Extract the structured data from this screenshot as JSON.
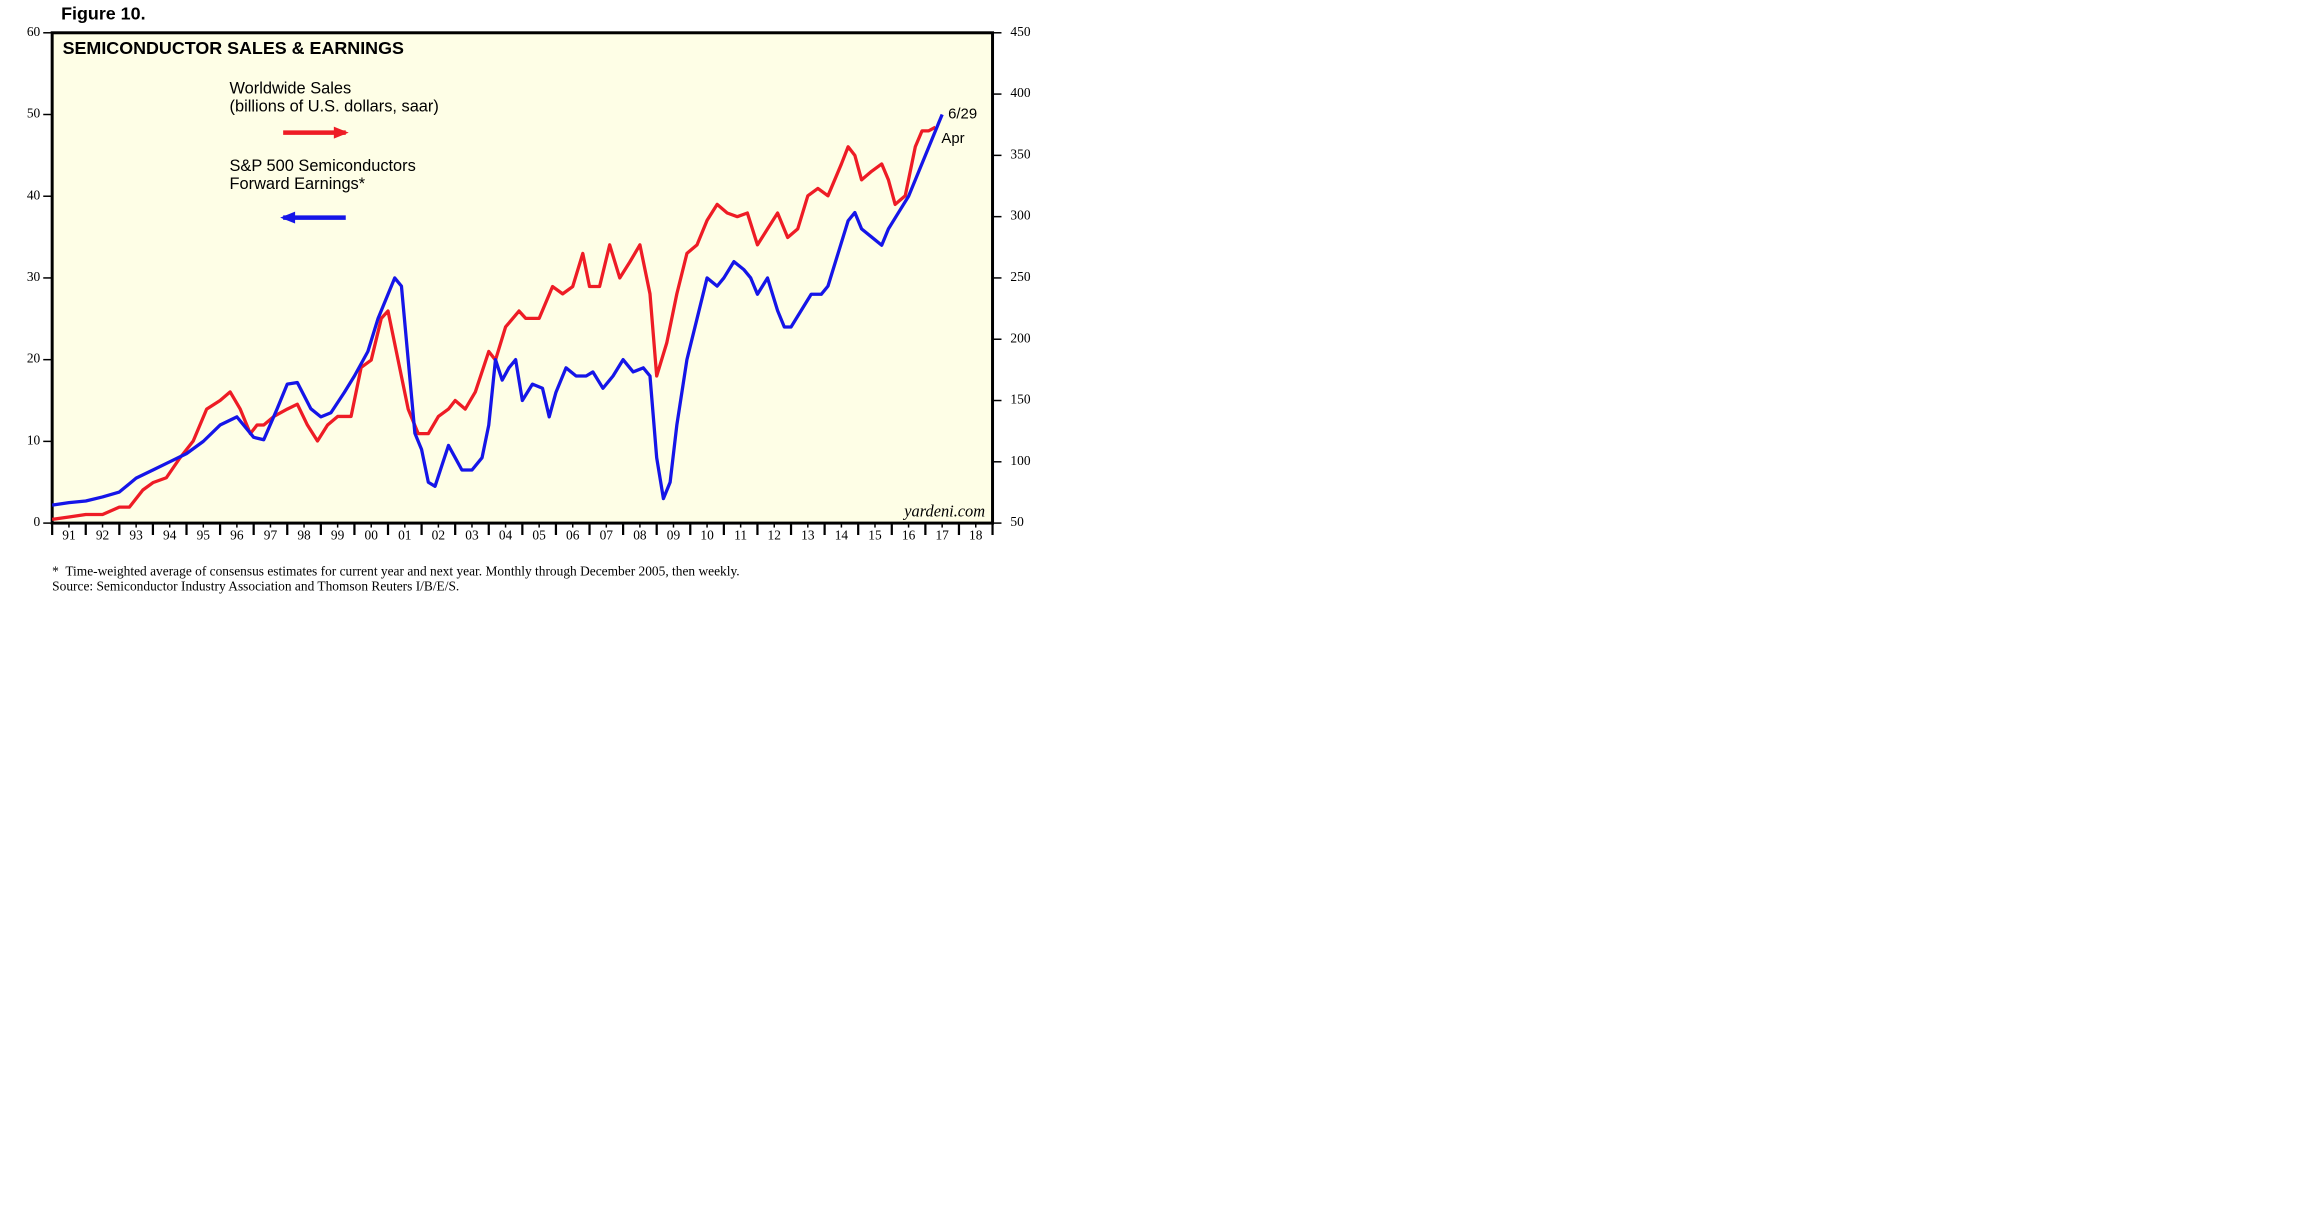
{
  "chart_data": {
    "type": "line",
    "figure_label": "Figure 10.",
    "title": "SEMICONDUCTOR SALES & EARNINGS",
    "watermark": "yardeni.com",
    "footnotes": [
      "*  Time-weighted average of consensus estimates for current year and next year. Monthly through December 2005, then weekly.",
      "Source:  Semiconductor Industry Association and Thomson Reuters I/B/E/S."
    ],
    "xlim": [
      1991,
      2019
    ],
    "xticks": [
      {
        "value": 1991.5,
        "label": "91"
      },
      {
        "value": 1992.5,
        "label": "92"
      },
      {
        "value": 1993.5,
        "label": "93"
      },
      {
        "value": 1994.5,
        "label": "94"
      },
      {
        "value": 1995.5,
        "label": "95"
      },
      {
        "value": 1996.5,
        "label": "96"
      },
      {
        "value": 1997.5,
        "label": "97"
      },
      {
        "value": 1998.5,
        "label": "98"
      },
      {
        "value": 1999.5,
        "label": "99"
      },
      {
        "value": 2000.5,
        "label": "00"
      },
      {
        "value": 2001.5,
        "label": "01"
      },
      {
        "value": 2002.5,
        "label": "02"
      },
      {
        "value": 2003.5,
        "label": "03"
      },
      {
        "value": 2004.5,
        "label": "04"
      },
      {
        "value": 2005.5,
        "label": "05"
      },
      {
        "value": 2006.5,
        "label": "06"
      },
      {
        "value": 2007.5,
        "label": "07"
      },
      {
        "value": 2008.5,
        "label": "08"
      },
      {
        "value": 2009.5,
        "label": "09"
      },
      {
        "value": 2010.5,
        "label": "10"
      },
      {
        "value": 2011.5,
        "label": "11"
      },
      {
        "value": 2012.5,
        "label": "12"
      },
      {
        "value": 2013.5,
        "label": "13"
      },
      {
        "value": 2014.5,
        "label": "14"
      },
      {
        "value": 2015.5,
        "label": "15"
      },
      {
        "value": 2016.5,
        "label": "16"
      },
      {
        "value": 2017.5,
        "label": "17"
      },
      {
        "value": 2018.5,
        "label": "18"
      }
    ],
    "ylim": [
      0,
      60
    ],
    "yticks": [
      0,
      10,
      20,
      30,
      40,
      50,
      60
    ],
    "y2lim": [
      50,
      450
    ],
    "y2ticks": [
      50,
      100,
      150,
      200,
      250,
      300,
      350,
      400,
      450
    ],
    "series": [
      {
        "name": "Worldwide Sales",
        "legend_note": "(billions of U.S. dollars, saar)",
        "legend_arrow": "right",
        "end_label": "Apr",
        "color": "#ee1c25",
        "axis": "y2",
        "x": [
          1991.0,
          1991.5,
          1992.0,
          1992.5,
          1993.0,
          1993.3,
          1993.7,
          1994.0,
          1994.4,
          1994.8,
          1995.2,
          1995.6,
          1996.0,
          1996.3,
          1996.6,
          1996.9,
          1997.1,
          1997.3,
          1997.6,
          1998.0,
          1998.3,
          1998.6,
          1998.9,
          1999.2,
          1999.5,
          1999.9,
          2000.2,
          2000.5,
          2000.8,
          2001.0,
          2001.3,
          2001.6,
          2001.9,
          2002.2,
          2002.5,
          2002.8,
          2003.0,
          2003.3,
          2003.6,
          2004.0,
          2004.2,
          2004.5,
          2004.9,
          2005.1,
          2005.5,
          2005.9,
          2006.2,
          2006.5,
          2006.8,
          2007.0,
          2007.3,
          2007.6,
          2007.9,
          2008.2,
          2008.5,
          2008.8,
          2009.0,
          2009.3,
          2009.6,
          2009.9,
          2010.2,
          2010.5,
          2010.8,
          2011.1,
          2011.4,
          2011.7,
          2012.0,
          2012.3,
          2012.6,
          2012.9,
          2013.2,
          2013.5,
          2013.8,
          2014.1,
          2014.5,
          2014.7,
          2014.9,
          2015.1,
          2015.4,
          2015.7,
          2015.9,
          2016.1,
          2016.4,
          2016.7,
          2016.9,
          2017.1,
          2017.3
        ],
        "values": [
          53,
          55,
          57,
          57,
          63,
          63,
          77,
          83,
          87,
          103,
          117,
          143,
          150,
          157,
          143,
          123,
          130,
          130,
          137,
          143,
          147,
          130,
          117,
          130,
          137,
          137,
          177,
          183,
          217,
          223,
          183,
          143,
          123,
          123,
          137,
          143,
          150,
          143,
          157,
          190,
          183,
          210,
          223,
          217,
          217,
          243,
          237,
          243,
          270,
          243,
          243,
          277,
          250,
          263,
          277,
          237,
          170,
          197,
          237,
          270,
          277,
          297,
          310,
          303,
          300,
          303,
          277,
          290,
          303,
          283,
          290,
          317,
          323,
          317,
          343,
          357,
          350,
          330,
          337,
          343,
          330,
          310,
          317,
          357,
          370,
          370,
          373
        ]
      },
      {
        "name": "S&P 500 Semiconductors",
        "legend_note": "Forward Earnings*",
        "legend_arrow": "left",
        "end_label": "6/29",
        "color": "#1515e8",
        "axis": "y",
        "x": [
          1991.0,
          1991.5,
          1992.0,
          1992.5,
          1993.0,
          1993.5,
          1994.0,
          1994.5,
          1995.0,
          1995.5,
          1996.0,
          1996.5,
          1997.0,
          1997.3,
          1997.7,
          1998.0,
          1998.3,
          1998.7,
          1999.0,
          1999.3,
          1999.7,
          2000.0,
          2000.4,
          2000.7,
          2001.0,
          2001.2,
          2001.4,
          2001.6,
          2001.8,
          2002.0,
          2002.2,
          2002.4,
          2002.6,
          2002.8,
          2003.0,
          2003.2,
          2003.5,
          2003.8,
          2004.0,
          2004.2,
          2004.4,
          2004.6,
          2004.8,
          2005.0,
          2005.3,
          2005.6,
          2005.8,
          2006.0,
          2006.3,
          2006.6,
          2006.9,
          2007.1,
          2007.4,
          2007.7,
          2008.0,
          2008.3,
          2008.6,
          2008.8,
          2009.0,
          2009.2,
          2009.4,
          2009.6,
          2009.9,
          2010.2,
          2010.5,
          2010.8,
          2011.0,
          2011.3,
          2011.6,
          2011.8,
          2012.0,
          2012.3,
          2012.6,
          2012.8,
          2013.0,
          2013.3,
          2013.6,
          2013.9,
          2014.1,
          2014.4,
          2014.7,
          2014.9,
          2015.1,
          2015.4,
          2015.7,
          2015.9,
          2016.2,
          2016.5,
          2016.8,
          2017.0,
          2017.2,
          2017.4,
          2017.5
        ],
        "values": [
          2.2,
          2.5,
          2.7,
          3.2,
          3.8,
          5.5,
          6.5,
          7.5,
          8.5,
          10,
          12,
          13,
          10.5,
          10.2,
          14,
          17,
          17.2,
          14,
          13,
          13.5,
          16,
          18,
          21,
          25,
          28,
          30,
          29,
          20,
          11,
          9,
          5,
          4.5,
          7,
          9.5,
          8,
          6.5,
          6.5,
          8,
          12,
          20,
          17.5,
          19,
          20,
          15,
          17,
          16.5,
          13,
          16,
          19,
          18,
          18,
          18.5,
          16.5,
          18,
          20,
          18.5,
          19,
          18,
          8,
          3,
          5,
          12,
          20,
          25,
          30,
          29,
          30,
          32,
          31,
          30,
          28,
          30,
          26,
          24,
          24,
          26,
          28,
          28,
          29,
          33,
          37,
          38,
          36,
          35,
          34,
          36,
          38,
          40,
          43,
          45,
          47,
          49,
          50
        ]
      }
    ]
  }
}
